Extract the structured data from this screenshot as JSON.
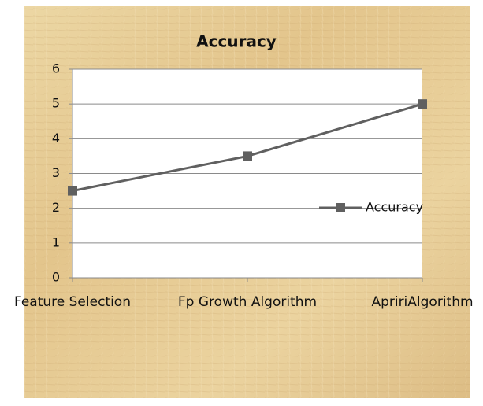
{
  "chart_data": {
    "type": "line",
    "title": "Accuracy",
    "categories": [
      "Feature Selection",
      "Fp Growth Algorithm",
      "ApririAlgorithm"
    ],
    "series": [
      {
        "name": "Accuracy",
        "color": "#606060",
        "values": [
          2.5,
          3.5,
          5
        ]
      }
    ],
    "ylim": [
      0,
      6
    ],
    "yticks": [
      0,
      1,
      2,
      3,
      4,
      5,
      6
    ],
    "grid": true,
    "legend": "right"
  }
}
